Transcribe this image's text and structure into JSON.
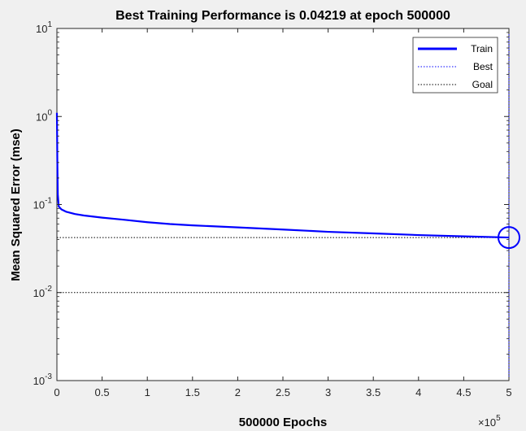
{
  "chart_data": {
    "type": "line",
    "title": "Best Training Performance is 0.04219 at epoch 500000",
    "xlabel": "500000 Epochs",
    "ylabel": "Mean Squared Error  (mse)",
    "x_multiplier_label": "×10",
    "x_multiplier_exp": "5",
    "xlim": [
      0,
      5
    ],
    "ylim": [
      0.001,
      10
    ],
    "yscale": "log",
    "x_ticks": [
      "0",
      "0.5",
      "1",
      "1.5",
      "2",
      "2.5",
      "3",
      "3.5",
      "4",
      "4.5",
      "5"
    ],
    "y_ticks": [
      {
        "base": "10",
        "exp": "1"
      },
      {
        "base": "10",
        "exp": "0"
      },
      {
        "base": "10",
        "exp": "-1"
      },
      {
        "base": "10",
        "exp": "-2"
      },
      {
        "base": "10",
        "exp": "-3"
      }
    ],
    "legend_position": "top-right",
    "legend": [
      "Train",
      "Best",
      "Goal"
    ],
    "colors": {
      "train": "#0000ff",
      "best": "#0000ff",
      "goal": "#000000"
    },
    "series": [
      {
        "name": "Train",
        "x": [
          0,
          0.005,
          0.01,
          0.02,
          0.05,
          0.1,
          0.2,
          0.3,
          0.5,
          0.75,
          1.0,
          1.25,
          1.5,
          2.0,
          2.5,
          3.0,
          3.5,
          4.0,
          4.5,
          5.0
        ],
        "y": [
          1.1,
          0.3,
          0.13,
          0.095,
          0.088,
          0.083,
          0.078,
          0.075,
          0.071,
          0.067,
          0.063,
          0.06,
          0.058,
          0.055,
          0.052,
          0.049,
          0.047,
          0.045,
          0.0435,
          0.04219
        ]
      }
    ],
    "best": {
      "x": 5.0,
      "y": 0.04219
    },
    "goal": 0.01
  }
}
